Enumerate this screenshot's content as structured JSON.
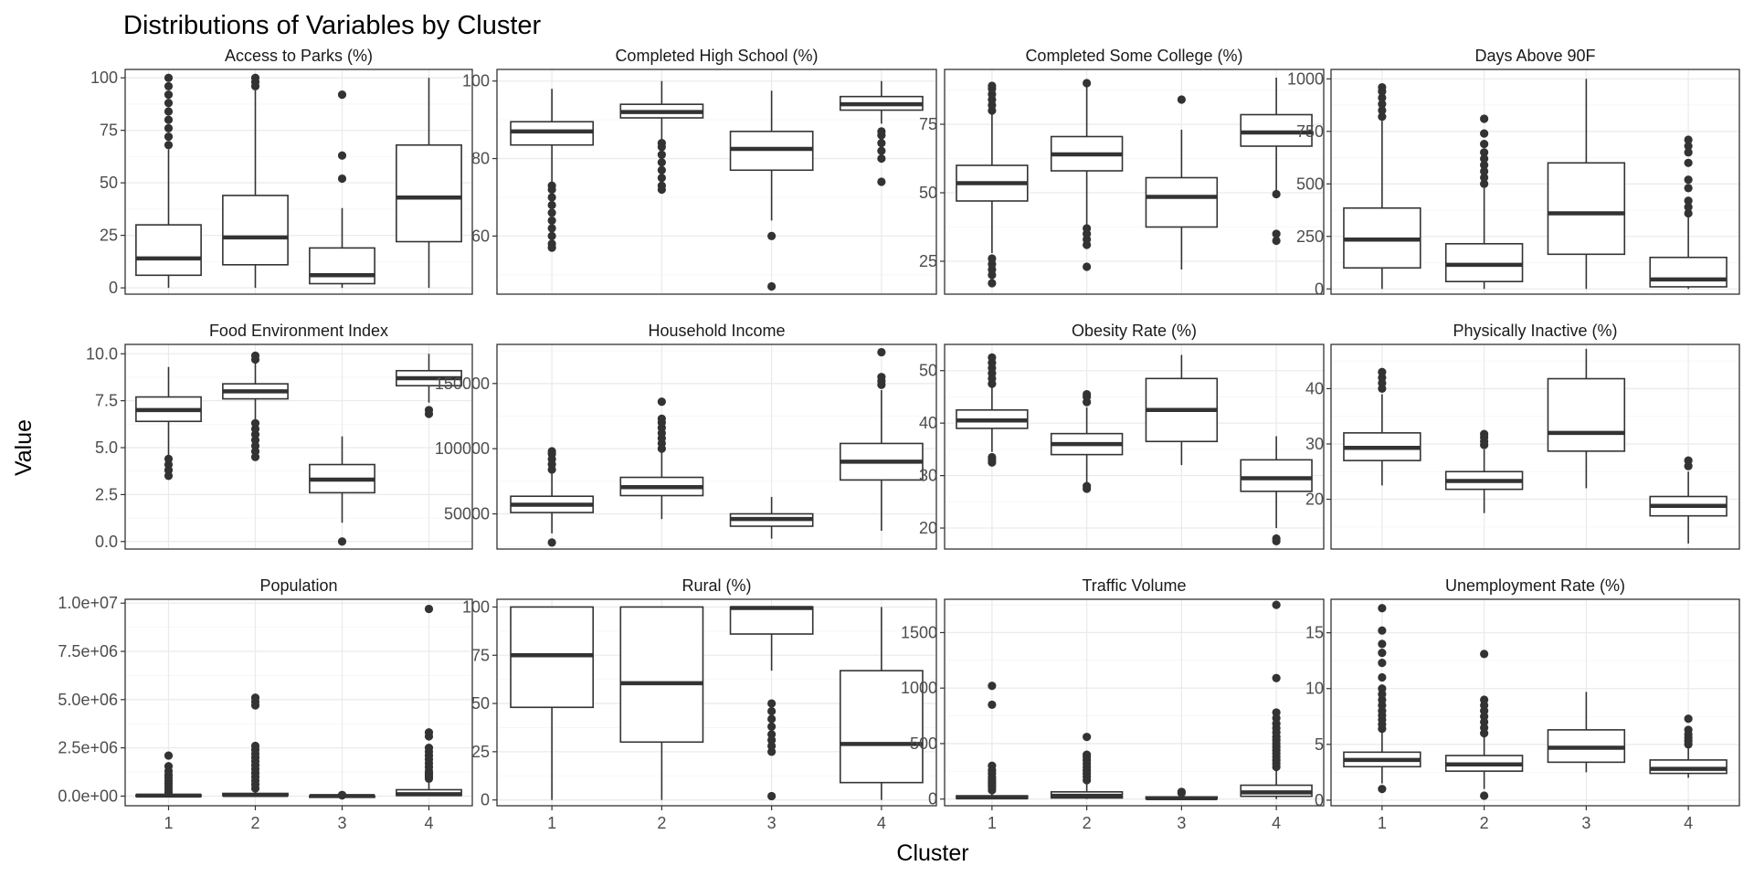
{
  "chart_data": {
    "type": "boxplot",
    "title": "Distributions of Variables by Cluster",
    "xlabel": "Cluster",
    "ylabel": "Value",
    "categories": [
      "1",
      "2",
      "3",
      "4"
    ],
    "layout": "facet grid 3 rows x 4 columns, free y scales",
    "grid": true,
    "panels": [
      {
        "name": "Access to Parks (%)",
        "ylim": [
          -3,
          104
        ],
        "yticks": [
          0,
          25,
          50,
          75,
          100
        ],
        "yticklabels": [
          "0",
          "25",
          "50",
          "75",
          "100"
        ],
        "boxes": [
          {
            "cluster": "1",
            "min": 0,
            "q1": 6,
            "median": 14,
            "q3": 30,
            "max": 66,
            "outliers": [
              68,
              72,
              76,
              80,
              84,
              88,
              92,
              96,
              100
            ]
          },
          {
            "cluster": "2",
            "min": 0,
            "q1": 11,
            "median": 24,
            "q3": 44,
            "max": 94,
            "outliers": [
              96,
              98,
              100
            ]
          },
          {
            "cluster": "3",
            "min": 0,
            "q1": 2,
            "median": 6,
            "q3": 19,
            "max": 38,
            "outliers": [
              52,
              63,
              92
            ]
          },
          {
            "cluster": "4",
            "min": 0,
            "q1": 22,
            "median": 43,
            "q3": 68,
            "max": 100,
            "outliers": []
          }
        ]
      },
      {
        "name": "Completed High School (%)",
        "ylim": [
          45,
          103
        ],
        "yticks": [
          60,
          80,
          100
        ],
        "yticklabels": [
          "60",
          "80",
          "100"
        ],
        "boxes": [
          {
            "cluster": "1",
            "min": 74,
            "q1": 83.5,
            "median": 87,
            "q3": 89.5,
            "max": 98,
            "outliers": [
              57,
              58,
              60,
              62,
              64,
              66,
              68,
              70,
              72,
              73
            ]
          },
          {
            "cluster": "2",
            "min": 85,
            "q1": 90.5,
            "median": 92,
            "q3": 94,
            "max": 100,
            "outliers": [
              72,
              73,
              75,
              77,
              79,
              81,
              83,
              84
            ]
          },
          {
            "cluster": "3",
            "min": 64,
            "q1": 77,
            "median": 82.5,
            "q3": 87,
            "max": 97.5,
            "outliers": [
              60,
              47
            ]
          },
          {
            "cluster": "4",
            "min": 89,
            "q1": 92.5,
            "median": 94,
            "q3": 96,
            "max": 100,
            "outliers": [
              74,
              80,
              82,
              84,
              86,
              87
            ]
          }
        ]
      },
      {
        "name": "Completed Some College (%)",
        "ylim": [
          13,
          95
        ],
        "yticks": [
          25,
          50,
          75
        ],
        "yticklabels": [
          "25",
          "50",
          "75"
        ],
        "boxes": [
          {
            "cluster": "1",
            "min": 28,
            "q1": 47,
            "median": 53.5,
            "q3": 60,
            "max": 79,
            "outliers": [
              17,
              20,
              22,
              24,
              26,
              80,
              82,
              84,
              86,
              88,
              89
            ]
          },
          {
            "cluster": "2",
            "min": 38,
            "q1": 58,
            "median": 64,
            "q3": 70.5,
            "max": 89,
            "outliers": [
              23,
              31,
              33,
              35,
              37,
              90
            ]
          },
          {
            "cluster": "3",
            "min": 22,
            "q1": 37.5,
            "median": 48.5,
            "q3": 55.5,
            "max": 73,
            "outliers": [
              84
            ]
          },
          {
            "cluster": "4",
            "min": 51,
            "q1": 67,
            "median": 72,
            "q3": 78.5,
            "max": 92,
            "outliers": [
              49.5,
              35,
              32.5
            ]
          }
        ]
      },
      {
        "name": "Days Above 90F",
        "ylim": [
          -25,
          1045
        ],
        "yticks": [
          0,
          250,
          500,
          750,
          1000
        ],
        "yticklabels": [
          "0",
          "250",
          "500",
          "750",
          "1000"
        ],
        "boxes": [
          {
            "cluster": "1",
            "min": 0,
            "q1": 100,
            "median": 235,
            "q3": 385,
            "max": 800,
            "outliers": [
              820,
              850,
              880,
              910,
              940,
              960
            ]
          },
          {
            "cluster": "2",
            "min": 0,
            "q1": 35,
            "median": 115,
            "q3": 215,
            "max": 480,
            "outliers": [
              500,
              530,
              560,
              590,
              620,
              650,
              690,
              740,
              810
            ]
          },
          {
            "cluster": "3",
            "min": 0,
            "q1": 165,
            "median": 360,
            "q3": 600,
            "max": 1000,
            "outliers": []
          },
          {
            "cluster": "4",
            "min": 0,
            "q1": 10,
            "median": 45,
            "q3": 150,
            "max": 340,
            "outliers": [
              360,
              390,
              420,
              480,
              520,
              600,
              650,
              680,
              710
            ]
          }
        ]
      },
      {
        "name": "Food Environment Index",
        "ylim": [
          -0.4,
          10.5
        ],
        "yticks": [
          0.0,
          2.5,
          5.0,
          7.5,
          10.0
        ],
        "yticklabels": [
          "0.0",
          "2.5",
          "5.0",
          "7.5",
          "10.0"
        ],
        "boxes": [
          {
            "cluster": "1",
            "min": 4.6,
            "q1": 6.4,
            "median": 7.0,
            "q3": 7.7,
            "max": 9.3,
            "outliers": [
              3.5,
              3.8,
              4.1,
              4.4
            ]
          },
          {
            "cluster": "2",
            "min": 6.5,
            "q1": 7.6,
            "median": 8.0,
            "q3": 8.4,
            "max": 9.5,
            "outliers": [
              4.5,
              4.8,
              5.1,
              5.4,
              5.7,
              6.0,
              6.3,
              9.7,
              9.9
            ]
          },
          {
            "cluster": "3",
            "min": 1.0,
            "q1": 2.6,
            "median": 3.3,
            "q3": 4.1,
            "max": 5.6,
            "outliers": [
              0.0
            ]
          },
          {
            "cluster": "4",
            "min": 7.4,
            "q1": 8.3,
            "median": 8.7,
            "q3": 9.1,
            "max": 10.0,
            "outliers": [
              6.8,
              7.0
            ]
          }
        ]
      },
      {
        "name": "Household Income",
        "ylim": [
          23000,
          180000
        ],
        "yticks": [
          50000,
          100000,
          150000
        ],
        "yticklabels": [
          "50000",
          "100000",
          "150000"
        ],
        "boxes": [
          {
            "cluster": "1",
            "min": 35000,
            "q1": 51000,
            "median": 57000,
            "q3": 63500,
            "max": 82000,
            "outliers": [
              28000,
              84000,
              88000,
              92000,
              96000,
              98000
            ]
          },
          {
            "cluster": "2",
            "min": 46000,
            "q1": 64000,
            "median": 70500,
            "q3": 78000,
            "max": 98000,
            "outliers": [
              100000,
              104000,
              108000,
              112000,
              116000,
              120000,
              123000,
              136000
            ]
          },
          {
            "cluster": "3",
            "min": 31000,
            "q1": 40500,
            "median": 46000,
            "q3": 50000,
            "max": 63000,
            "outliers": []
          },
          {
            "cluster": "4",
            "min": 37000,
            "q1": 76000,
            "median": 90000,
            "q3": 104000,
            "max": 145000,
            "outliers": [
              149000,
              152000,
              155000,
              174000
            ]
          }
        ]
      },
      {
        "name": "Obesity Rate (%)",
        "ylim": [
          16,
          55
        ],
        "yticks": [
          20,
          30,
          40,
          50
        ],
        "yticklabels": [
          "20",
          "30",
          "40",
          "50"
        ],
        "boxes": [
          {
            "cluster": "1",
            "min": 34.5,
            "q1": 39,
            "median": 40.5,
            "q3": 42.5,
            "max": 47,
            "outliers": [
              32.5,
              33,
              33.5,
              47.5,
              48.5,
              49.5,
              50.5,
              51.5,
              52.5
            ]
          },
          {
            "cluster": "2",
            "min": 28.5,
            "q1": 34,
            "median": 36,
            "q3": 38,
            "max": 43,
            "outliers": [
              27.5,
              28,
              44,
              45,
              45.5
            ]
          },
          {
            "cluster": "3",
            "min": 32,
            "q1": 36.5,
            "median": 42.5,
            "q3": 48.5,
            "max": 53,
            "outliers": []
          },
          {
            "cluster": "4",
            "min": 20,
            "q1": 27,
            "median": 29.5,
            "q3": 33,
            "max": 37.5,
            "outliers": [
              18,
              17.5
            ]
          }
        ]
      },
      {
        "name": "Physically Inactive (%)",
        "ylim": [
          11,
          48
        ],
        "yticks": [
          20,
          30,
          40
        ],
        "yticklabels": [
          "20",
          "30",
          "40"
        ],
        "boxes": [
          {
            "cluster": "1",
            "min": 22.5,
            "q1": 27,
            "median": 29.3,
            "q3": 32,
            "max": 39,
            "outliers": [
              40,
              41,
              42,
              43
            ]
          },
          {
            "cluster": "2",
            "min": 17.5,
            "q1": 21.8,
            "median": 23.3,
            "q3": 25,
            "max": 29,
            "outliers": [
              29.8,
              30.5,
              31.2,
              31.8
            ]
          },
          {
            "cluster": "3",
            "min": 22,
            "q1": 28.7,
            "median": 32,
            "q3": 41.8,
            "max": 47.2,
            "outliers": []
          },
          {
            "cluster": "4",
            "min": 12,
            "q1": 17,
            "median": 18.8,
            "q3": 20.5,
            "max": 25,
            "outliers": [
              26,
              27
            ]
          }
        ]
      },
      {
        "name": "Population",
        "ylim": [
          -500000,
          10200000
        ],
        "yticks": [
          0,
          2500000,
          5000000,
          7500000,
          10000000
        ],
        "yticklabels": [
          "0.0e+00",
          "2.5e+06",
          "5.0e+06",
          "7.5e+06",
          "1.0e+07"
        ],
        "boxes": [
          {
            "cluster": "1",
            "min": 0,
            "q1": 10000,
            "median": 25000,
            "q3": 60000,
            "max": 135000,
            "outliers": [
              200000,
              350000,
              500000,
              650000,
              800000,
              950000,
              1100000,
              1300000,
              1550000,
              2100000
            ]
          },
          {
            "cluster": "2",
            "min": 0,
            "q1": 25000,
            "median": 55000,
            "q3": 140000,
            "max": 310000,
            "outliers": [
              400000,
              600000,
              800000,
              1000000,
              1200000,
              1400000,
              1600000,
              1800000,
              2000000,
              2200000,
              2400000,
              2600000,
              4700000,
              4900000,
              5100000
            ]
          },
          {
            "cluster": "3",
            "min": 0,
            "q1": 2000,
            "median": 5000,
            "q3": 12000,
            "max": 25000,
            "outliers": [
              40000,
              60000
            ]
          },
          {
            "cluster": "4",
            "min": 0,
            "q1": 30000,
            "median": 100000,
            "q3": 330000,
            "max": 800000,
            "outliers": [
              900000,
              1000000,
              1100000,
              1200000,
              1300000,
              1500000,
              1700000,
              1900000,
              2100000,
              2300000,
              2500000,
              3100000,
              3300000,
              9700000
            ]
          }
        ]
      },
      {
        "name": "Rural (%)",
        "ylim": [
          -3,
          104
        ],
        "yticks": [
          0,
          25,
          50,
          75,
          100
        ],
        "yticklabels": [
          "0",
          "25",
          "50",
          "75",
          "100"
        ],
        "boxes": [
          {
            "cluster": "1",
            "min": 0,
            "q1": 48,
            "median": 75,
            "q3": 100,
            "max": 100,
            "outliers": []
          },
          {
            "cluster": "2",
            "min": 0,
            "q1": 30,
            "median": 60.5,
            "q3": 100,
            "max": 100,
            "outliers": []
          },
          {
            "cluster": "3",
            "min": 67,
            "q1": 86,
            "median": 99.5,
            "q3": 100,
            "max": 100,
            "outliers": [
              2,
              25,
              28,
              31,
              34,
              38,
              42,
              46,
              50
            ]
          },
          {
            "cluster": "4",
            "min": 0,
            "q1": 9,
            "median": 29,
            "q3": 67,
            "max": 100,
            "outliers": []
          }
        ]
      },
      {
        "name": "Traffic Volume",
        "ylim": [
          -60,
          1800
        ],
        "yticks": [
          0,
          500,
          1000,
          1500
        ],
        "yticklabels": [
          "0",
          "500",
          "1000",
          "1500"
        ],
        "boxes": [
          {
            "cluster": "1",
            "min": 0,
            "q1": 5,
            "median": 15,
            "q3": 30,
            "max": 70,
            "outliers": [
              80,
              100,
              120,
              140,
              160,
              180,
              200,
              230,
              260,
              300,
              850,
              1020
            ]
          },
          {
            "cluster": "2",
            "min": 0,
            "q1": 10,
            "median": 30,
            "q3": 65,
            "max": 150,
            "outliers": [
              170,
              200,
              230,
              260,
              290,
              320,
              350,
              380,
              400,
              560
            ]
          },
          {
            "cluster": "3",
            "min": 0,
            "q1": 3,
            "median": 8,
            "q3": 20,
            "max": 40,
            "outliers": [
              55,
              65
            ]
          },
          {
            "cluster": "4",
            "min": 0,
            "q1": 25,
            "median": 60,
            "q3": 125,
            "max": 270,
            "outliers": [
              290,
              320,
              350,
              380,
              410,
              440,
              470,
              500,
              530,
              560,
              600,
              640,
              680,
              730,
              780,
              1090,
              1750
            ]
          }
        ]
      },
      {
        "name": "Unemployment Rate (%)",
        "ylim": [
          -0.5,
          18
        ],
        "yticks": [
          0,
          5,
          10,
          15
        ],
        "yticklabels": [
          "0",
          "5",
          "10",
          "15"
        ],
        "boxes": [
          {
            "cluster": "1",
            "min": 1.5,
            "q1": 3.0,
            "median": 3.6,
            "q3": 4.3,
            "max": 6.2,
            "outliers": [
              1.0,
              6.4,
              6.8,
              7.2,
              7.6,
              8.0,
              8.5,
              9.0,
              9.5,
              10.0,
              11.0,
              12.3,
              13.2,
              14.0,
              15.2,
              17.2
            ]
          },
          {
            "cluster": "2",
            "min": 1.0,
            "q1": 2.6,
            "median": 3.2,
            "q3": 4.0,
            "max": 5.8,
            "outliers": [
              0.4,
              6.0,
              6.5,
              7.0,
              7.5,
              8.0,
              8.5,
              9.0,
              13.1
            ]
          },
          {
            "cluster": "3",
            "min": 2.5,
            "q1": 3.4,
            "median": 4.7,
            "q3": 6.3,
            "max": 9.7,
            "outliers": []
          },
          {
            "cluster": "4",
            "min": 2.0,
            "q1": 2.4,
            "median": 2.8,
            "q3": 3.6,
            "max": 4.8,
            "outliers": [
              5.0,
              5.3,
              5.6,
              5.9,
              6.3,
              7.3
            ]
          }
        ]
      }
    ]
  }
}
